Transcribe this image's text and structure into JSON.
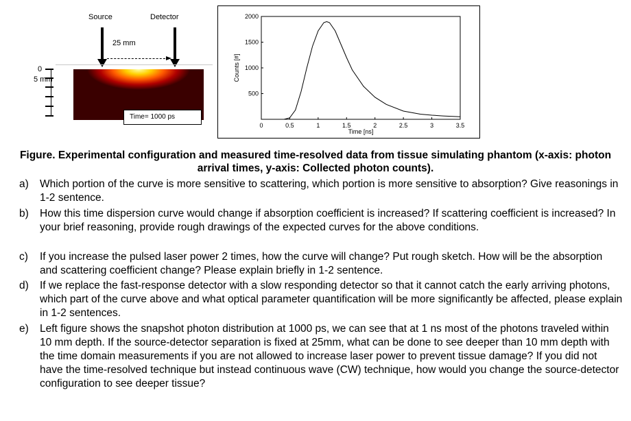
{
  "left_figure": {
    "source_label": "Source",
    "detector_label": "Detector",
    "separation_label": "25 mm",
    "depth_zero_label": "0",
    "depth_label": "5 mm",
    "time_label": "Time= 1000 ps"
  },
  "chart_data": {
    "type": "line",
    "xlabel": "Time [ns]",
    "ylabel": "Counts [#]",
    "xlim": [
      0,
      3.5
    ],
    "ylim": [
      0,
      2000
    ],
    "xticks": [
      "0",
      "0.5",
      "1",
      "1.5",
      "2",
      "2.5",
      "3",
      "3.5"
    ],
    "yticks": [
      "500",
      "1000",
      "1500",
      "2000"
    ],
    "series": [
      {
        "x": [
          0.4,
          0.5,
          0.6,
          0.7,
          0.8,
          0.9,
          1.0,
          1.1,
          1.15,
          1.2,
          1.3,
          1.4,
          1.5,
          1.6,
          1.8,
          2.0,
          2.2,
          2.5,
          2.8,
          3.0,
          3.2,
          3.5
        ],
        "values": [
          0,
          30,
          180,
          540,
          1000,
          1420,
          1720,
          1880,
          1900,
          1880,
          1720,
          1460,
          1200,
          960,
          640,
          430,
          290,
          160,
          100,
          80,
          65,
          50
        ]
      }
    ],
    "grid": false
  },
  "caption": "Figure. Experimental configuration and measured time-resolved data from tissue simulating phantom (x-axis: photon arrival times, y-axis: Collected photon counts).",
  "questions": [
    {
      "letter": "a)",
      "text": "Which portion of the curve is more sensitive to scattering, which portion is more sensitive to absorption? Give reasonings in 1-2 sentence."
    },
    {
      "letter": "b)",
      "text": "How this time dispersion curve would change if absorption coefficient is increased? If scattering coefficient is increased? In your brief reasoning, provide rough drawings of the expected curves for the above conditions."
    },
    {
      "letter": "c)",
      "text": "If you increase the pulsed laser power 2 times, how the curve will change? Put rough sketch. How will be the absorption and scattering coefficient change? Please explain briefly in 1-2 sentence."
    },
    {
      "letter": "d)",
      "text": "If we replace the fast-response detector with a slow responding detector so that it cannot catch the early arriving photons, which part of the curve above and what optical parameter quantification will be more significantly be affected, please explain in 1-2 sentences."
    },
    {
      "letter": "e)",
      "text": "Left figure shows the snapshot photon distribution at 1000 ps, we can see that at 1 ns most of the photons traveled within 10 mm depth. If the source-detector separation is fixed at 25mm, what can be done to see deeper than 10 mm depth with the time domain measurements if you are not allowed to increase laser power to prevent tissue damage? If you did not have the time-resolved technique but instead continuous wave (CW) technique, how would you change the source-detector configuration to see deeper tissue?"
    }
  ]
}
